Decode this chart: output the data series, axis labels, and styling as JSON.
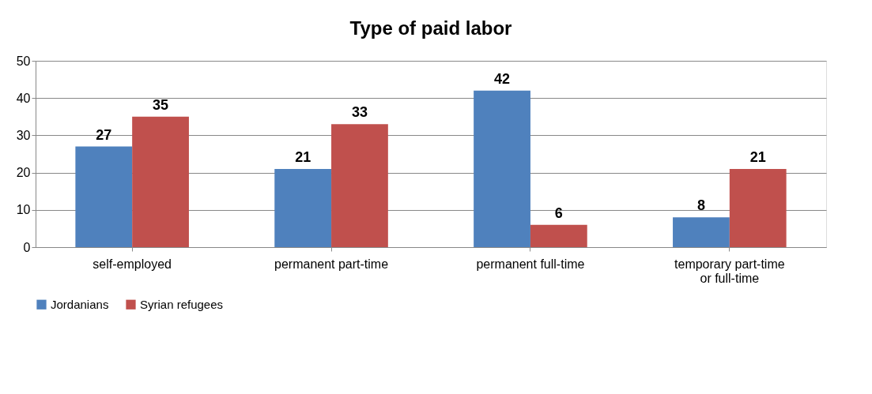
{
  "chart_data": {
    "type": "bar",
    "title": "Type of paid labor",
    "categories": [
      "self-employed",
      "permanent part-time",
      "permanent full-time",
      "temporary part-time\nor full-time"
    ],
    "series": [
      {
        "name": "Jordanians",
        "color": "#4f81bd",
        "values": [
          27,
          21,
          42,
          8
        ]
      },
      {
        "name": "Syrian refugees",
        "color": "#c0504d",
        "values": [
          35,
          33,
          6,
          21
        ]
      }
    ],
    "ylim": [
      0,
      50
    ],
    "yticks": [
      0,
      10,
      20,
      30,
      40,
      50
    ],
    "grid": "y",
    "legend": "bottom",
    "data_labels": true
  }
}
